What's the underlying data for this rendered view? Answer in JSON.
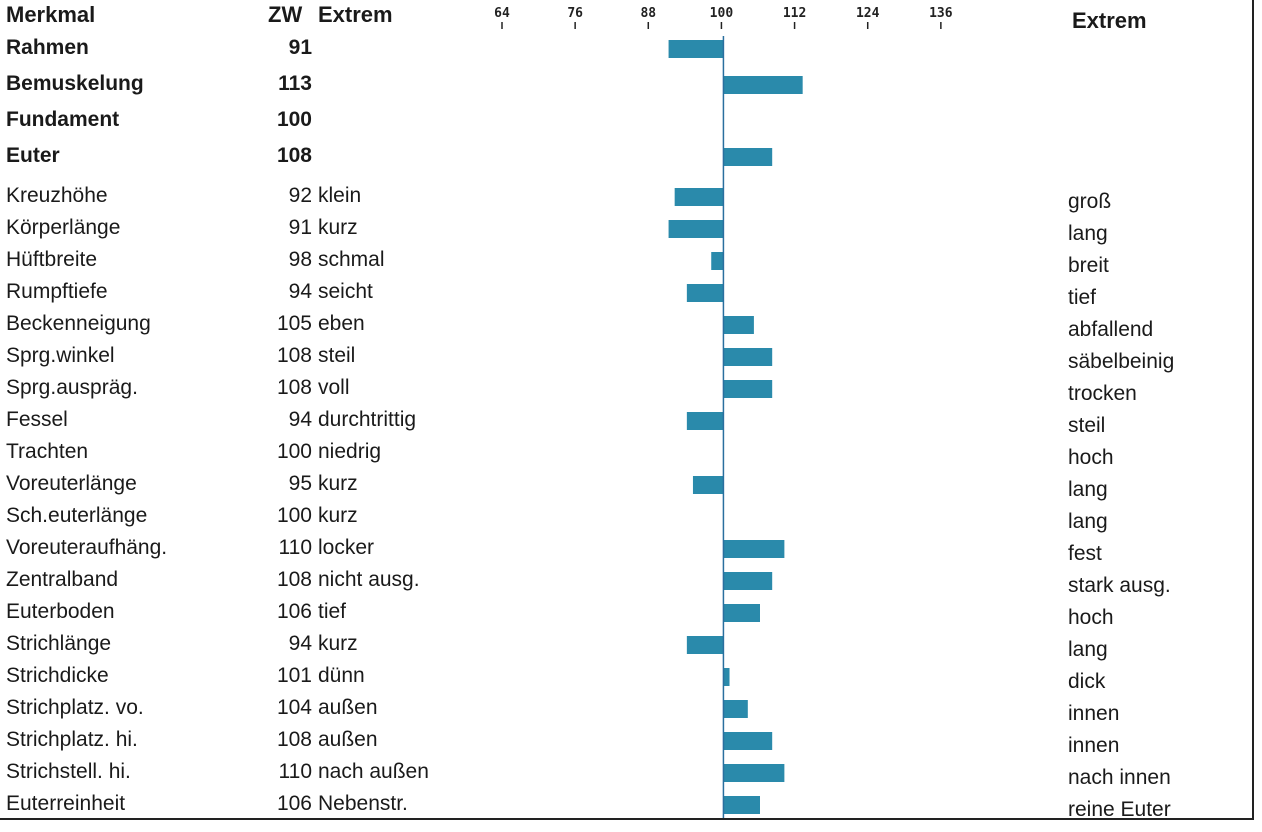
{
  "headers": {
    "merkmal": "Merkmal",
    "zw": "ZW",
    "extrem_left": "Extrem",
    "extrem_right": "Extrem"
  },
  "colors": {
    "bar": "#2a8aab",
    "axis": "#2a6f9e"
  },
  "chart_data": {
    "type": "bar",
    "orientation": "horizontal",
    "baseline": 100,
    "xlim": [
      64,
      148
    ],
    "xticks": [
      "64",
      "76",
      "88",
      "100",
      "112",
      "124",
      "136"
    ],
    "rows": [
      {
        "label": "Rahmen",
        "zw": "91",
        "value": 91,
        "left": "",
        "right": "",
        "bold": true
      },
      {
        "label": "Bemuskelung",
        "zw": "113",
        "value": 113,
        "left": "",
        "right": "",
        "bold": true
      },
      {
        "label": "Fundament",
        "zw": "100",
        "value": 100,
        "left": "",
        "right": "",
        "bold": true
      },
      {
        "label": "Euter",
        "zw": "108",
        "value": 108,
        "left": "",
        "right": "",
        "bold": true
      },
      {
        "label": "Kreuzhöhe",
        "zw": "92",
        "value": 92,
        "left": "klein",
        "right": "groß",
        "bold": false
      },
      {
        "label": "Körperlänge",
        "zw": "91",
        "value": 91,
        "left": "kurz",
        "right": "lang",
        "bold": false
      },
      {
        "label": "Hüftbreite",
        "zw": "98",
        "value": 98,
        "left": "schmal",
        "right": "breit",
        "bold": false
      },
      {
        "label": "Rumpftiefe",
        "zw": "94",
        "value": 94,
        "left": "seicht",
        "right": "tief",
        "bold": false
      },
      {
        "label": "Beckenneigung",
        "zw": "105",
        "value": 105,
        "left": "eben",
        "right": "abfallend",
        "bold": false
      },
      {
        "label": "Sprg.winkel",
        "zw": "108",
        "value": 108,
        "left": "steil",
        "right": "säbelbeinig",
        "bold": false
      },
      {
        "label": "Sprg.auspräg.",
        "zw": "108",
        "value": 108,
        "left": "voll",
        "right": "trocken",
        "bold": false
      },
      {
        "label": "Fessel",
        "zw": "94",
        "value": 94,
        "left": "durchtrittig",
        "right": "steil",
        "bold": false
      },
      {
        "label": "Trachten",
        "zw": "100",
        "value": 100,
        "left": "niedrig",
        "right": "hoch",
        "bold": false
      },
      {
        "label": "Voreuterlänge",
        "zw": "95",
        "value": 95,
        "left": "kurz",
        "right": "lang",
        "bold": false
      },
      {
        "label": "Sch.euterlänge",
        "zw": "100",
        "value": 100,
        "left": "kurz",
        "right": "lang",
        "bold": false
      },
      {
        "label": "Voreuteraufhäng.",
        "zw": "110",
        "value": 110,
        "left": "locker",
        "right": "fest",
        "bold": false
      },
      {
        "label": "Zentralband",
        "zw": "108",
        "value": 108,
        "left": "nicht ausg.",
        "right": "stark ausg.",
        "bold": false
      },
      {
        "label": "Euterboden",
        "zw": "106",
        "value": 106,
        "left": "tief",
        "right": "hoch",
        "bold": false
      },
      {
        "label": "Strichlänge",
        "zw": "94",
        "value": 94,
        "left": "kurz",
        "right": "lang",
        "bold": false
      },
      {
        "label": "Strichdicke",
        "zw": "101",
        "value": 101,
        "left": "dünn",
        "right": "dick",
        "bold": false
      },
      {
        "label": "Strichplatz. vo.",
        "zw": "104",
        "value": 104,
        "left": "außen",
        "right": "innen",
        "bold": false
      },
      {
        "label": "Strichplatz. hi.",
        "zw": "108",
        "value": 108,
        "left": "außen",
        "right": "innen",
        "bold": false
      },
      {
        "label": "Strichstell. hi.",
        "zw": "110",
        "value": 110,
        "left": "nach außen",
        "right": "nach innen",
        "bold": false
      },
      {
        "label": "Euterreinheit",
        "zw": "106",
        "value": 106,
        "left": "Nebenstr.",
        "right": "reine Euter",
        "bold": false
      }
    ]
  }
}
